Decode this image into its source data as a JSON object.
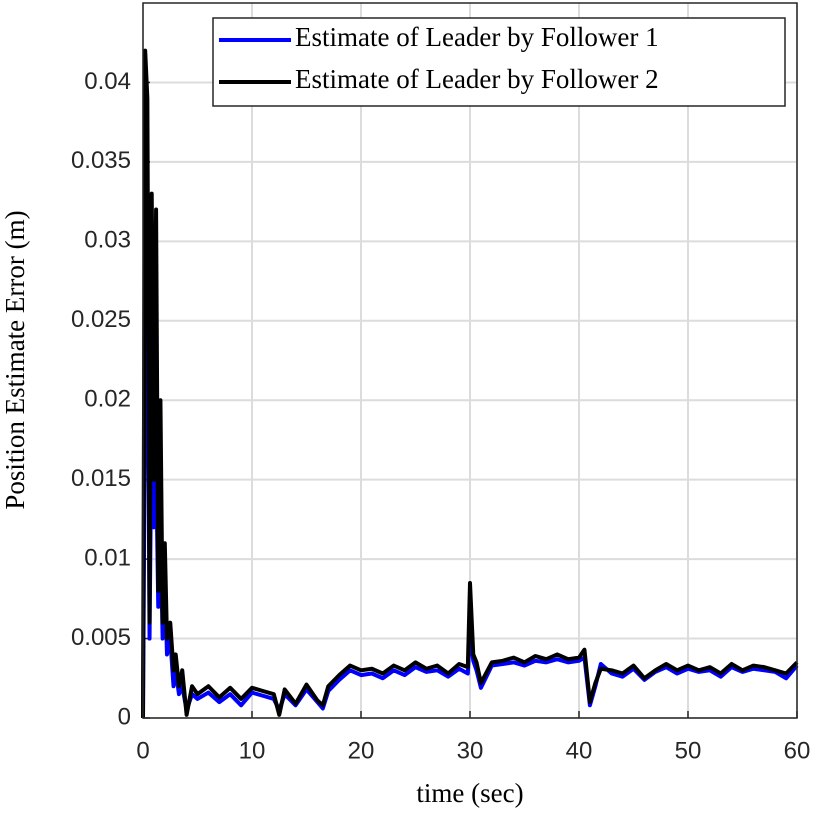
{
  "chart_data": {
    "type": "line",
    "xlabel": "time (sec)",
    "ylabel": "Position Estimate Error (m)",
    "x": [
      0,
      0.2,
      0.4,
      0.6,
      0.8,
      1,
      1.2,
      1.4,
      1.6,
      1.8,
      2,
      2.2,
      2.5,
      2.8,
      3,
      3.3,
      3.6,
      4,
      4.5,
      5,
      6,
      7,
      8,
      9,
      10,
      11,
      12,
      12.5,
      13,
      14,
      15,
      16,
      16.5,
      17,
      18,
      19,
      20,
      21,
      22,
      23,
      24,
      25,
      26,
      27,
      28,
      29,
      29.8,
      30,
      30.3,
      30.6,
      31,
      32,
      33,
      34,
      35,
      36,
      37,
      38,
      39,
      40,
      40.5,
      41,
      41.5,
      42,
      43,
      44,
      45,
      46,
      47,
      48,
      49,
      50,
      51,
      52,
      53,
      54,
      55,
      56,
      57,
      58,
      59,
      60
    ],
    "series": [
      {
        "name": "Estimate of Leader by Follower 1",
        "color": "#0000ff",
        "values": [
          0,
          0.022,
          0.03,
          0.005,
          0.02,
          0.012,
          0.016,
          0.007,
          0.012,
          0.005,
          0.009,
          0.004,
          0.005,
          0.002,
          0.003,
          0.0015,
          0.002,
          0.0005,
          0.0015,
          0.0012,
          0.0016,
          0.001,
          0.0015,
          0.0008,
          0.0016,
          0.0014,
          0.0012,
          0.0005,
          0.0015,
          0.0008,
          0.0018,
          0.001,
          0.0006,
          0.0017,
          0.0024,
          0.003,
          0.0027,
          0.0028,
          0.0025,
          0.003,
          0.0027,
          0.0032,
          0.0029,
          0.003,
          0.0026,
          0.0031,
          0.0028,
          0.0055,
          0.0036,
          0.003,
          0.0019,
          0.0033,
          0.0034,
          0.0035,
          0.0033,
          0.0036,
          0.0035,
          0.0037,
          0.0035,
          0.0036,
          0.0038,
          0.0008,
          0.002,
          0.0034,
          0.0028,
          0.0026,
          0.0031,
          0.0024,
          0.0029,
          0.0032,
          0.0028,
          0.0031,
          0.0029,
          0.003,
          0.0026,
          0.0032,
          0.0029,
          0.0031,
          0.003,
          0.0029,
          0.0025,
          0.0033
        ]
      },
      {
        "name": "Estimate of Leader by Follower 2",
        "color": "#000000",
        "values": [
          0,
          0.042,
          0.039,
          0.006,
          0.033,
          0.015,
          0.032,
          0.008,
          0.02,
          0.006,
          0.011,
          0.005,
          0.006,
          0.003,
          0.004,
          0.002,
          0.003,
          0.0002,
          0.002,
          0.0015,
          0.002,
          0.0013,
          0.0019,
          0.0012,
          0.0019,
          0.0017,
          0.0015,
          0.0002,
          0.0018,
          0.0009,
          0.0021,
          0.0011,
          0.0008,
          0.002,
          0.0027,
          0.0033,
          0.003,
          0.0031,
          0.0028,
          0.0033,
          0.003,
          0.0035,
          0.0031,
          0.0033,
          0.0028,
          0.0034,
          0.0032,
          0.0085,
          0.004,
          0.0035,
          0.0022,
          0.0035,
          0.0036,
          0.0038,
          0.0035,
          0.0039,
          0.0037,
          0.004,
          0.0037,
          0.0038,
          0.0043,
          0.001,
          0.0022,
          0.0031,
          0.003,
          0.0028,
          0.0033,
          0.0025,
          0.003,
          0.0034,
          0.003,
          0.0033,
          0.003,
          0.0032,
          0.0028,
          0.0034,
          0.003,
          0.0033,
          0.0032,
          0.003,
          0.0028,
          0.0035
        ]
      }
    ],
    "xlim": [
      0,
      60
    ],
    "xticks": [
      0,
      10,
      20,
      30,
      40,
      50,
      60
    ],
    "ylim": [
      0,
      0.045
    ],
    "yticks": [
      0,
      0.005,
      0.01,
      0.015,
      0.02,
      0.025,
      0.03,
      0.035,
      0.04
    ],
    "grid": true,
    "legend": "top-right"
  }
}
